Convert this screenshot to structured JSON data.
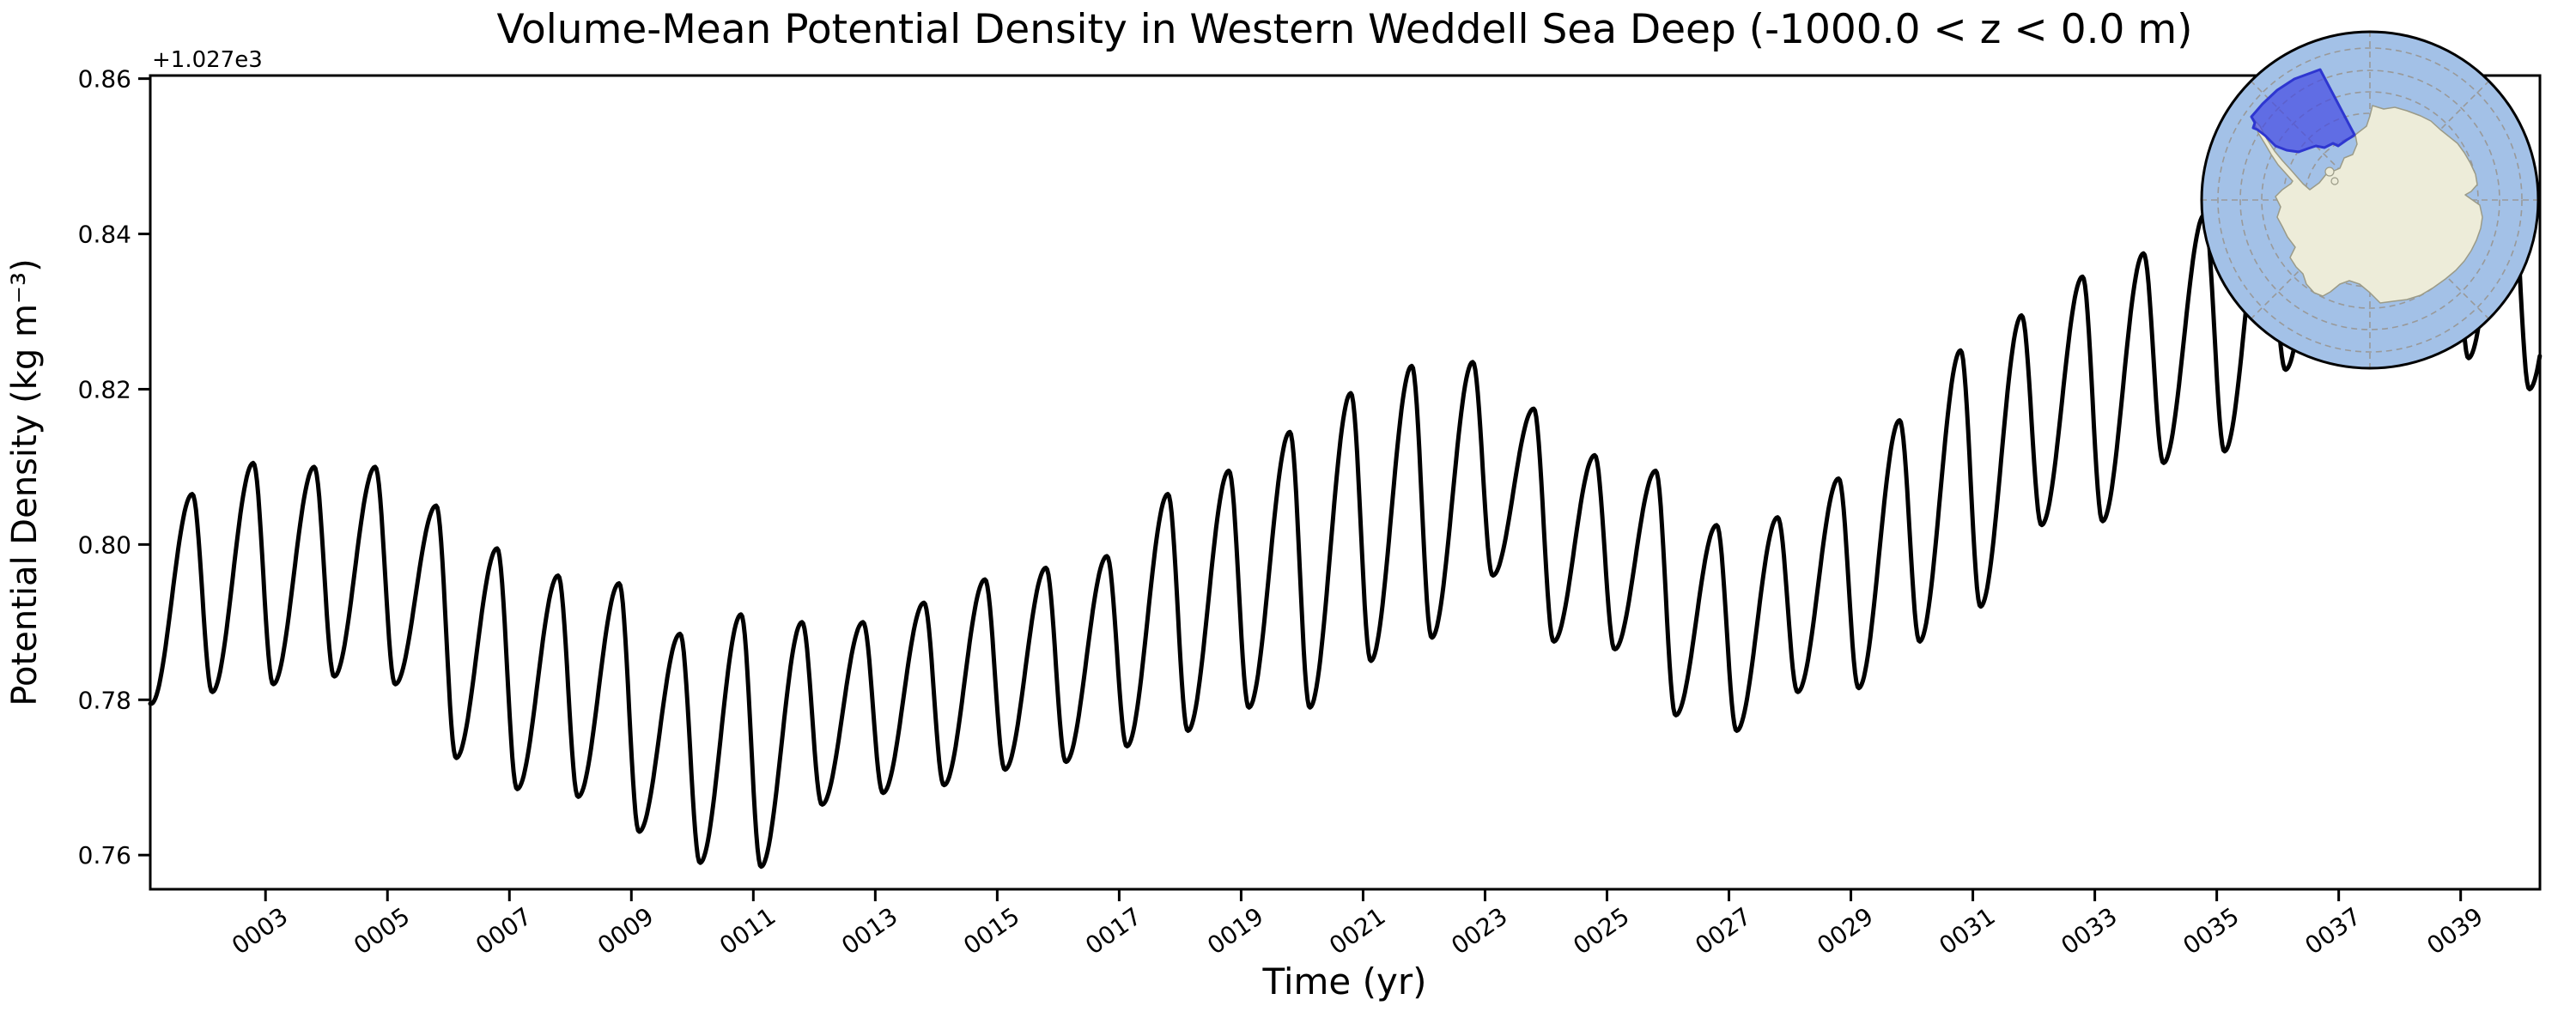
{
  "figure": {
    "title": "Volume-Mean Potential Density in Western Weddell Sea Deep (-1000.0 < z < 0.0 m)"
  },
  "axes": {
    "xlabel": "Time (yr)",
    "ylabel": "Potential Density (kg m⁻³)",
    "y_offset_text": "+1.027e3",
    "xtick_labels": [
      "0003",
      "0005",
      "0007",
      "0009",
      "0011",
      "0013",
      "0015",
      "0017",
      "0019",
      "0021",
      "0023",
      "0025",
      "0027",
      "0029",
      "0031",
      "0033",
      "0035",
      "0037",
      "0039"
    ],
    "xtick_years": [
      3,
      5,
      7,
      9,
      11,
      13,
      15,
      17,
      19,
      21,
      23,
      25,
      27,
      29,
      31,
      33,
      35,
      37,
      39
    ],
    "ytick_labels": [
      "0.76",
      "0.78",
      "0.80",
      "0.82",
      "0.84",
      "0.86"
    ],
    "ytick_values": [
      0.76,
      0.78,
      0.8,
      0.82,
      0.84,
      0.86
    ],
    "xlim": [
      1.11,
      40.3
    ],
    "ylim": [
      0.7556,
      0.8604
    ]
  },
  "chart_data": {
    "type": "line",
    "title": "Volume-Mean Potential Density in Western Weddell Sea Deep (-1000.0 < z < 0.0 m)",
    "xlabel": "Time (yr)",
    "ylabel": "Potential Density (kg m⁻³)",
    "y_units_offset": 1027,
    "xlim": [
      1.11,
      40.3
    ],
    "ylim": [
      0.7556,
      0.8604
    ],
    "grid": false,
    "legend": "none",
    "series_name": "volume-mean potential density (monthly, annual cycle)",
    "annual_cycle": {
      "trough_phase": 0.125,
      "peak_phase": 0.8
    },
    "years": [
      1,
      2,
      3,
      4,
      5,
      6,
      7,
      8,
      9,
      10,
      11,
      12,
      13,
      14,
      15,
      16,
      17,
      18,
      19,
      20,
      21,
      22,
      23,
      24,
      25,
      26,
      27,
      28,
      29,
      30,
      31,
      32,
      33,
      34,
      35,
      36,
      37,
      38,
      39,
      40
    ],
    "annual_min": [
      0.7795,
      0.781,
      0.782,
      0.783,
      0.782,
      0.7725,
      0.7685,
      0.7675,
      0.763,
      0.759,
      0.7585,
      0.7665,
      0.768,
      0.769,
      0.771,
      0.772,
      0.774,
      0.776,
      0.779,
      0.779,
      0.785,
      0.788,
      0.796,
      0.7875,
      0.7865,
      0.778,
      0.776,
      0.781,
      0.7815,
      0.7875,
      0.792,
      0.8025,
      0.803,
      0.8105,
      0.812,
      0.8225,
      0.824,
      0.826,
      0.824,
      0.82
    ],
    "annual_max": [
      0.8065,
      0.8105,
      0.81,
      0.81,
      0.805,
      0.7995,
      0.796,
      0.795,
      0.7885,
      0.791,
      0.79,
      0.79,
      0.7925,
      0.7955,
      0.797,
      0.7985,
      0.8065,
      0.8095,
      0.8145,
      0.8195,
      0.823,
      0.8235,
      0.8175,
      0.8115,
      0.8095,
      0.8025,
      0.8035,
      0.8085,
      0.816,
      0.825,
      0.8295,
      0.8345,
      0.8375,
      0.8425,
      0.846,
      0.849,
      0.852,
      0.856,
      0.852,
      0.848
    ]
  },
  "inset_map": {
    "name": "south-polar-stereographic-inset",
    "highlighted_region": "western-weddell-sea"
  },
  "colors": {
    "line": "#000000",
    "frame": "#000000",
    "ocean": "#a3c1e7",
    "land": "#edecd9",
    "land_edge": "#9b9b88",
    "graticule": "#999999",
    "region_fill": "#4348e2",
    "region_edge": "#2e36d0",
    "map_border": "#000000"
  }
}
